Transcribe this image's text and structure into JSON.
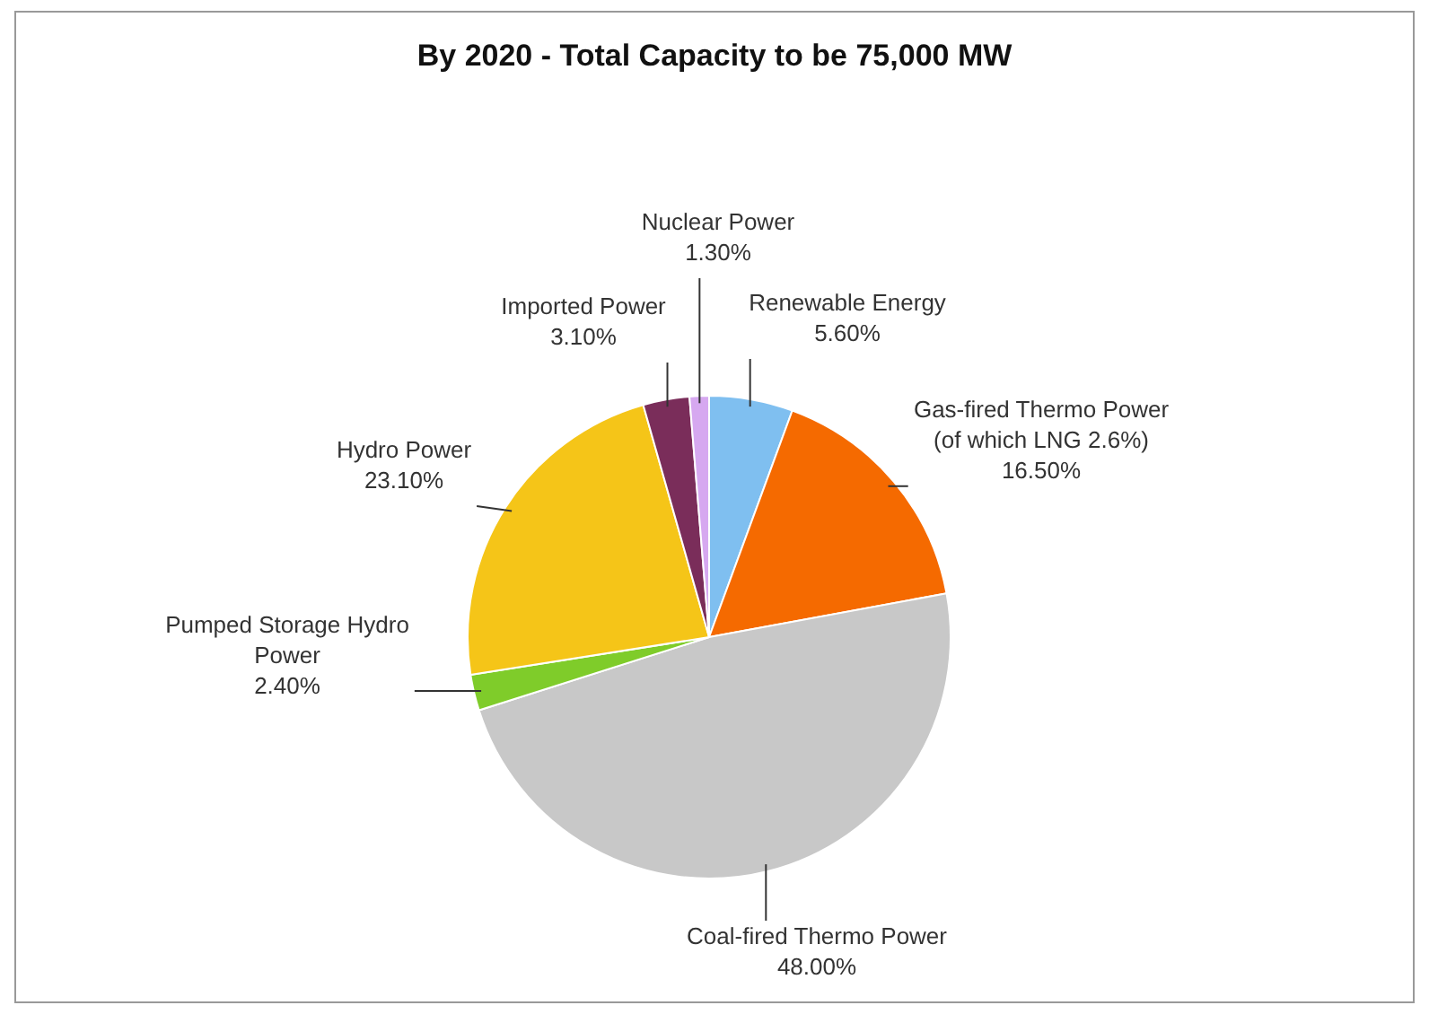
{
  "chart_data": {
    "type": "pie",
    "title": "By 2020 - Total Capacity to be 75,000 MW",
    "categories": [
      "Renewable Energy",
      "Gas-fired Thermo Power (of which LNG 2.6%)",
      "Coal-fired Thermo Power",
      "Pumped Storage Hydro Power",
      "Hydro Power",
      "Imported Power",
      "Nuclear Power"
    ],
    "values": [
      5.6,
      16.5,
      48.0,
      2.4,
      23.1,
      3.1,
      1.3
    ],
    "value_labels": [
      "5.60%",
      "16.50%",
      "48.00%",
      "2.40%",
      "23.10%",
      "3.10%",
      "1.30%"
    ],
    "colors": [
      "#7fbff0",
      "#f56a00",
      "#c8c8c8",
      "#7fcc2a",
      "#f5c518",
      "#7a2d5a",
      "#d6a8f0"
    ],
    "legend": false
  }
}
